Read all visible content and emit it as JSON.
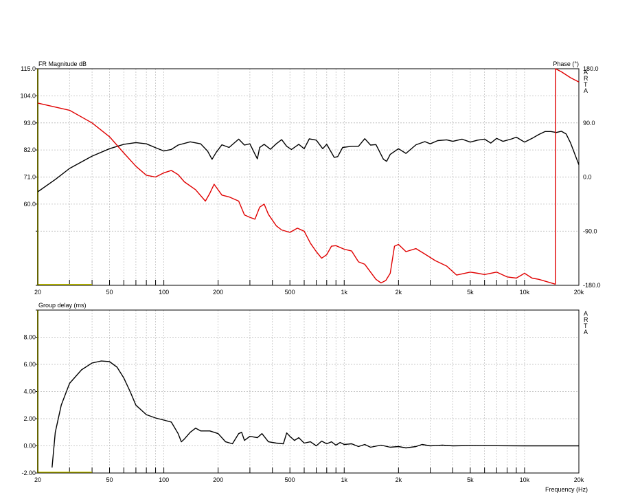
{
  "chart_data": [
    {
      "type": "line",
      "title": "FR Magnitude dB",
      "right_title": "Phase (°)",
      "watermark": [
        "A",
        "R",
        "T",
        "A"
      ],
      "x_scale": "log",
      "xlim": [
        20,
        20000
      ],
      "x_ticks": [
        20,
        50,
        100,
        200,
        500,
        1000,
        2000,
        5000,
        10000,
        20000
      ],
      "x_tick_labels": [
        "20",
        "50",
        "100",
        "200",
        "500",
        "1k",
        "2k",
        "5k",
        "10k",
        "20k"
      ],
      "ylim": [
        27.0,
        115.0
      ],
      "y_ticks": [
        115.0,
        104.0,
        93.0,
        82.0,
        71.0,
        60.0
      ],
      "y_tick_labels": [
        "115.0",
        "104.0",
        "93.0",
        "82.0",
        "71.0",
        "60.0"
      ],
      "y2lim": [
        -180.0,
        180.0
      ],
      "y2_ticks": [
        180.0,
        90.0,
        0.0,
        -90.0,
        -180.0
      ],
      "y2_tick_labels": [
        "180.0",
        "90.0",
        "0.0",
        "-90.0",
        "-180.0"
      ],
      "grid": true,
      "series": [
        {
          "name": "",
          "axis": "left",
          "color": "#000000",
          "points": [
            [
              20,
              65
            ],
            [
              25,
              70
            ],
            [
              30,
              74.5
            ],
            [
              40,
              79.5
            ],
            [
              50,
              82.5
            ],
            [
              60,
              84.3
            ],
            [
              70,
              85.0
            ],
            [
              80,
              84.5
            ],
            [
              90,
              82.9
            ],
            [
              100,
              81.6
            ],
            [
              110,
              82.2
            ],
            [
              120,
              84.0
            ],
            [
              140,
              85.3
            ],
            [
              160,
              84.5
            ],
            [
              175,
              81.5
            ],
            [
              185,
              78.2
            ],
            [
              195,
              81.0
            ],
            [
              210,
              84.1
            ],
            [
              230,
              83.0
            ],
            [
              260,
              86.4
            ],
            [
              280,
              84.0
            ],
            [
              300,
              84.5
            ],
            [
              320,
              80.3
            ],
            [
              330,
              78.4
            ],
            [
              340,
              83.0
            ],
            [
              360,
              84.3
            ],
            [
              390,
              82.3
            ],
            [
              420,
              84.5
            ],
            [
              450,
              86.2
            ],
            [
              480,
              83.5
            ],
            [
              510,
              82.2
            ],
            [
              560,
              84.3
            ],
            [
              600,
              82.5
            ],
            [
              640,
              86.5
            ],
            [
              700,
              86.0
            ],
            [
              760,
              82.5
            ],
            [
              800,
              84.3
            ],
            [
              880,
              79.0
            ],
            [
              920,
              79.3
            ],
            [
              980,
              83.0
            ],
            [
              1100,
              83.5
            ],
            [
              1200,
              83.5
            ],
            [
              1300,
              86.6
            ],
            [
              1400,
              84.0
            ],
            [
              1500,
              84.2
            ],
            [
              1650,
              78.2
            ],
            [
              1720,
              77.4
            ],
            [
              1800,
              80.2
            ],
            [
              2000,
              82.5
            ],
            [
              2200,
              80.6
            ],
            [
              2500,
              84.1
            ],
            [
              2800,
              85.4
            ],
            [
              3000,
              84.5
            ],
            [
              3300,
              85.8
            ],
            [
              3700,
              86.1
            ],
            [
              4000,
              85.5
            ],
            [
              4500,
              86.4
            ],
            [
              5000,
              85.2
            ],
            [
              5500,
              86.0
            ],
            [
              6000,
              86.4
            ],
            [
              6500,
              84.8
            ],
            [
              7000,
              86.7
            ],
            [
              7600,
              85.5
            ],
            [
              8500,
              86.5
            ],
            [
              9000,
              87.2
            ],
            [
              10000,
              85.2
            ],
            [
              11000,
              86.7
            ],
            [
              12000,
              88.3
            ],
            [
              13000,
              89.5
            ],
            [
              14000,
              89.5
            ],
            [
              15000,
              89.1
            ],
            [
              16000,
              89.6
            ],
            [
              17000,
              88.5
            ],
            [
              18000,
              84.8
            ],
            [
              20000,
              76.0
            ]
          ]
        },
        {
          "name": "",
          "axis": "right",
          "color": "#e00000",
          "points": [
            [
              20,
              123
            ],
            [
              30,
              111
            ],
            [
              40,
              90
            ],
            [
              50,
              67
            ],
            [
              60,
              40
            ],
            [
              70,
              18
            ],
            [
              80,
              3
            ],
            [
              90,
              0
            ],
            [
              100,
              7
            ],
            [
              110,
              11
            ],
            [
              120,
              4
            ],
            [
              130,
              -8
            ],
            [
              150,
              -21
            ],
            [
              170,
              -40
            ],
            [
              180,
              -27
            ],
            [
              190,
              -12
            ],
            [
              210,
              -30
            ],
            [
              230,
              -33
            ],
            [
              260,
              -40
            ],
            [
              280,
              -63
            ],
            [
              300,
              -67
            ],
            [
              320,
              -70
            ],
            [
              340,
              -50
            ],
            [
              360,
              -45
            ],
            [
              380,
              -62
            ],
            [
              420,
              -81
            ],
            [
              450,
              -88
            ],
            [
              500,
              -92
            ],
            [
              550,
              -85
            ],
            [
              600,
              -90
            ],
            [
              650,
              -110
            ],
            [
              700,
              -124
            ],
            [
              750,
              -135
            ],
            [
              800,
              -129
            ],
            [
              850,
              -115
            ],
            [
              900,
              -114
            ],
            [
              1000,
              -120
            ],
            [
              1100,
              -123
            ],
            [
              1200,
              -141
            ],
            [
              1300,
              -145
            ],
            [
              1500,
              -170
            ],
            [
              1600,
              -176
            ],
            [
              1700,
              -172
            ],
            [
              1800,
              -160
            ],
            [
              1900,
              -115
            ],
            [
              2000,
              -112
            ],
            [
              2200,
              -124
            ],
            [
              2500,
              -119
            ],
            [
              2800,
              -128
            ],
            [
              3200,
              -139
            ],
            [
              3700,
              -148
            ],
            [
              4200,
              -163
            ],
            [
              5000,
              -158
            ],
            [
              5500,
              -160
            ],
            [
              6000,
              -162
            ],
            [
              7000,
              -158
            ],
            [
              8000,
              -166
            ],
            [
              9000,
              -168
            ],
            [
              10000,
              -160
            ],
            [
              11000,
              -168
            ],
            [
              12000,
              -170
            ],
            [
              14800,
              -178
            ],
            [
              14850,
              180
            ],
            [
              16000,
              175
            ],
            [
              18000,
              165
            ],
            [
              20000,
              158
            ]
          ]
        }
      ]
    },
    {
      "type": "line",
      "title": "Group delay (ms)",
      "watermark": [
        "A",
        "R",
        "T",
        "A"
      ],
      "x_scale": "log",
      "xlim": [
        20,
        20000
      ],
      "x_ticks": [
        20,
        50,
        100,
        200,
        500,
        1000,
        2000,
        5000,
        10000,
        20000
      ],
      "x_tick_labels": [
        "20",
        "50",
        "100",
        "200",
        "500",
        "1k",
        "2k",
        "5k",
        "10k",
        "20k"
      ],
      "xlabel": "Frequency (Hz)",
      "ylim": [
        -2.0,
        10.0
      ],
      "y_ticks": [
        8.0,
        6.0,
        4.0,
        2.0,
        0.0,
        -2.0
      ],
      "y_tick_labels": [
        "8.00",
        "6.00",
        "4.00",
        "2.00",
        "0.00",
        "-2.00"
      ],
      "grid": true,
      "series": [
        {
          "name": "",
          "color": "#000000",
          "points": [
            [
              24,
              -1.6
            ],
            [
              25,
              1.0
            ],
            [
              27,
              3.0
            ],
            [
              30,
              4.6
            ],
            [
              35,
              5.6
            ],
            [
              40,
              6.1
            ],
            [
              45,
              6.25
            ],
            [
              50,
              6.2
            ],
            [
              55,
              5.8
            ],
            [
              60,
              5.0
            ],
            [
              65,
              4.0
            ],
            [
              70,
              3.0
            ],
            [
              80,
              2.3
            ],
            [
              90,
              2.05
            ],
            [
              100,
              1.9
            ],
            [
              110,
              1.75
            ],
            [
              120,
              0.9
            ],
            [
              125,
              0.3
            ],
            [
              130,
              0.5
            ],
            [
              140,
              1.0
            ],
            [
              150,
              1.3
            ],
            [
              160,
              1.1
            ],
            [
              180,
              1.1
            ],
            [
              200,
              0.9
            ],
            [
              220,
              0.3
            ],
            [
              240,
              0.15
            ],
            [
              260,
              0.9
            ],
            [
              270,
              1.0
            ],
            [
              280,
              0.4
            ],
            [
              300,
              0.7
            ],
            [
              330,
              0.6
            ],
            [
              350,
              0.9
            ],
            [
              380,
              0.3
            ],
            [
              420,
              0.2
            ],
            [
              460,
              0.15
            ],
            [
              480,
              0.95
            ],
            [
              500,
              0.7
            ],
            [
              530,
              0.4
            ],
            [
              560,
              0.6
            ],
            [
              600,
              0.2
            ],
            [
              650,
              0.3
            ],
            [
              700,
              0.0
            ],
            [
              750,
              0.35
            ],
            [
              800,
              0.15
            ],
            [
              850,
              0.3
            ],
            [
              900,
              0.05
            ],
            [
              950,
              0.25
            ],
            [
              1000,
              0.1
            ],
            [
              1100,
              0.15
            ],
            [
              1200,
              -0.05
            ],
            [
              1300,
              0.1
            ],
            [
              1400,
              -0.1
            ],
            [
              1600,
              0.05
            ],
            [
              1800,
              -0.1
            ],
            [
              2000,
              -0.05
            ],
            [
              2200,
              -0.15
            ],
            [
              2500,
              -0.05
            ],
            [
              2700,
              0.1
            ],
            [
              3000,
              0.0
            ],
            [
              3500,
              0.05
            ],
            [
              4000,
              0.0
            ],
            [
              5000,
              0.02
            ],
            [
              7000,
              0.01
            ],
            [
              10000,
              0.0
            ],
            [
              15000,
              0.0
            ],
            [
              20000,
              0.0
            ]
          ]
        }
      ]
    }
  ]
}
